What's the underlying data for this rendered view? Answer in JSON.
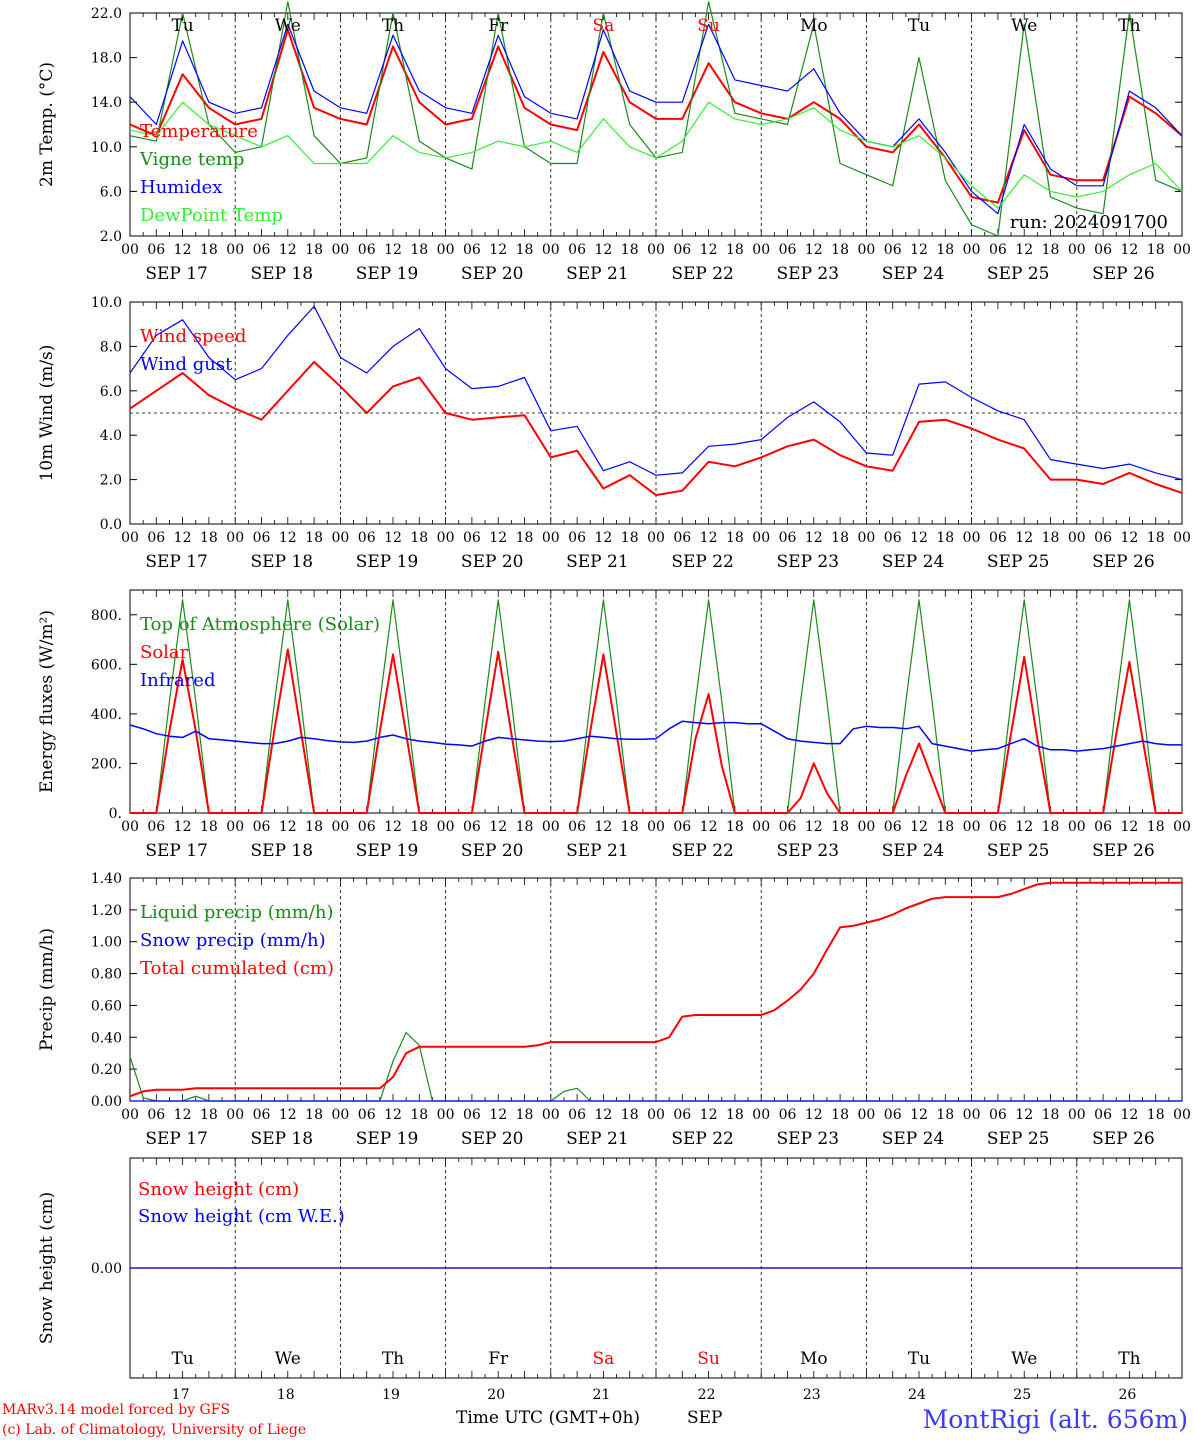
{
  "footer": {
    "credit_line1": "MARv3.14 model forced by GFS",
    "credit_line2": "(c) Lab. of Climatology, University of Liege",
    "xlabel": "Time UTC (GMT+0h)",
    "month": "SEP",
    "station": "MontRigi (alt. 656m)"
  },
  "chart_data": [
    {
      "type": "line",
      "id": "temp",
      "ylabel": "2m Temp. (°C)",
      "ylim": [
        2,
        22
      ],
      "yticks": [
        2,
        6,
        10,
        14,
        18,
        22
      ],
      "ytick_labels": [
        "2.0",
        "6.0",
        "10.0",
        "14.0",
        "18.0",
        "22.0"
      ],
      "annotation": "run: 2024091700",
      "show_dow": true,
      "x_hours": [
        0,
        6,
        12,
        18,
        24,
        30,
        36,
        42,
        48,
        54,
        60,
        66,
        72,
        78,
        84,
        90,
        96,
        102,
        108,
        114,
        120,
        126,
        132,
        138,
        144,
        150,
        156,
        162,
        168,
        174,
        180,
        186,
        192,
        198,
        204,
        210,
        216,
        222,
        228,
        234,
        240
      ],
      "series": [
        {
          "name": "Temperature",
          "color": "#ff0000",
          "width": 2,
          "values": [
            12.0,
            11.0,
            16.5,
            13.5,
            12.0,
            12.5,
            20.5,
            13.5,
            12.5,
            12.0,
            19.0,
            14.0,
            12.0,
            12.5,
            19.0,
            13.5,
            12.0,
            11.5,
            18.5,
            14.0,
            12.5,
            12.5,
            17.5,
            14.0,
            13.0,
            12.5,
            14.0,
            12.5,
            10.0,
            9.5,
            12.0,
            9.0,
            5.5,
            5.0,
            11.5,
            7.5,
            7.0,
            7.0,
            14.5,
            13.0,
            11.0
          ]
        },
        {
          "name": "Vigne temp",
          "color": "#1a8a1a",
          "width": 1.2,
          "values": [
            11.0,
            10.5,
            22.0,
            12.0,
            9.5,
            10.0,
            23.0,
            11.0,
            8.5,
            9.0,
            22.0,
            10.5,
            9.0,
            8.0,
            22.0,
            10.0,
            8.5,
            8.5,
            22.0,
            12.0,
            9.0,
            9.5,
            23.0,
            13.0,
            12.5,
            12.0,
            21.0,
            8.5,
            7.5,
            6.5,
            18.0,
            7.0,
            3.0,
            2.0,
            21.0,
            5.5,
            4.5,
            4.0,
            22.0,
            7.0,
            6.0
          ]
        },
        {
          "name": "Humidex",
          "color": "#0000ff",
          "width": 1.2,
          "values": [
            14.5,
            12.0,
            19.5,
            14.0,
            13.0,
            13.5,
            21.0,
            15.0,
            13.5,
            13.0,
            20.0,
            15.0,
            13.5,
            13.0,
            20.0,
            14.5,
            13.0,
            12.5,
            20.5,
            15.0,
            14.0,
            14.0,
            21.0,
            16.0,
            15.5,
            15.0,
            17.0,
            13.0,
            10.5,
            10.0,
            12.5,
            9.5,
            6.0,
            4.0,
            12.0,
            8.0,
            6.5,
            6.5,
            15.0,
            13.5,
            11.0
          ]
        },
        {
          "name": "DewPoint Temp",
          "color": "#33ee33",
          "width": 1.2,
          "values": [
            11.5,
            11.0,
            14.0,
            12.0,
            11.0,
            10.0,
            11.0,
            8.5,
            8.5,
            8.5,
            11.0,
            9.5,
            9.0,
            9.5,
            10.5,
            10.0,
            10.5,
            9.5,
            12.5,
            10.0,
            9.0,
            10.5,
            14.0,
            12.5,
            12.0,
            12.5,
            13.5,
            11.5,
            10.5,
            10.0,
            11.0,
            9.0,
            6.5,
            4.5,
            7.5,
            6.0,
            5.5,
            6.0,
            7.5,
            8.5,
            6.0
          ]
        }
      ]
    },
    {
      "type": "line",
      "id": "wind",
      "ylabel": "10m Wind (m/s)",
      "ylim": [
        0,
        10
      ],
      "yticks": [
        0,
        2,
        4,
        6,
        8,
        10
      ],
      "ytick_labels": [
        "0.0",
        "2.0",
        "4.0",
        "6.0",
        "8.0",
        "10.0"
      ],
      "reference_line": 5,
      "x_hours": [
        0,
        6,
        12,
        18,
        24,
        30,
        36,
        42,
        48,
        54,
        60,
        66,
        72,
        78,
        84,
        90,
        96,
        102,
        108,
        114,
        120,
        126,
        132,
        138,
        144,
        150,
        156,
        162,
        168,
        174,
        180,
        186,
        192,
        198,
        204,
        210,
        216,
        222,
        228,
        234,
        240
      ],
      "series": [
        {
          "name": "Wind speed",
          "color": "#ff0000",
          "width": 2,
          "values": [
            5.2,
            6.0,
            6.8,
            5.8,
            5.2,
            4.7,
            6.0,
            7.3,
            6.2,
            5.0,
            6.2,
            6.6,
            5.0,
            4.7,
            4.8,
            4.9,
            3.0,
            3.3,
            1.6,
            2.2,
            1.3,
            1.5,
            2.8,
            2.6,
            3.0,
            3.5,
            3.8,
            3.1,
            2.6,
            2.4,
            4.6,
            4.7,
            4.3,
            3.8,
            3.4,
            2.0,
            2.0,
            1.8,
            2.3,
            1.8,
            1.4
          ]
        },
        {
          "name": "Wind gust",
          "color": "#0000ff",
          "width": 1.2,
          "values": [
            6.8,
            8.5,
            9.2,
            7.5,
            6.5,
            7.0,
            8.5,
            9.8,
            7.5,
            6.8,
            8.0,
            8.8,
            7.0,
            6.1,
            6.2,
            6.6,
            4.2,
            4.4,
            2.4,
            2.8,
            2.2,
            2.3,
            3.5,
            3.6,
            3.8,
            4.8,
            5.5,
            4.6,
            3.2,
            3.1,
            6.3,
            6.4,
            5.7,
            5.1,
            4.7,
            2.9,
            2.7,
            2.5,
            2.7,
            2.3,
            2.0
          ]
        }
      ]
    },
    {
      "type": "line",
      "id": "energy",
      "ylabel": "Energy fluxes (W/m²)",
      "ylim": [
        0,
        900
      ],
      "yticks": [
        0,
        200,
        400,
        600,
        800
      ],
      "ytick_labels": [
        "0.",
        "200.",
        "400.",
        "600.",
        "800."
      ],
      "x_hours": [
        0,
        3,
        6,
        9,
        12,
        15,
        18,
        21,
        24,
        27,
        30,
        33,
        36,
        39,
        42,
        45,
        48,
        51,
        54,
        57,
        60,
        63,
        66,
        69,
        72,
        75,
        78,
        81,
        84,
        87,
        90,
        93,
        96,
        99,
        102,
        105,
        108,
        111,
        114,
        117,
        120,
        123,
        126,
        129,
        132,
        135,
        138,
        141,
        144,
        147,
        150,
        153,
        156,
        159,
        162,
        165,
        168,
        171,
        174,
        177,
        180,
        183,
        186,
        189,
        192,
        195,
        198,
        201,
        204,
        207,
        210,
        213,
        216,
        219,
        222,
        225,
        228,
        231,
        234,
        237,
        240
      ],
      "series": [
        {
          "name": "Top of Atmosphere (Solar)",
          "color": "#1a8a1a",
          "width": 1.2,
          "values": [
            0,
            0,
            0,
            450,
            860,
            450,
            0,
            0,
            0,
            0,
            0,
            450,
            860,
            450,
            0,
            0,
            0,
            0,
            0,
            450,
            860,
            450,
            0,
            0,
            0,
            0,
            0,
            450,
            860,
            450,
            0,
            0,
            0,
            0,
            0,
            450,
            860,
            450,
            0,
            0,
            0,
            0,
            0,
            450,
            860,
            450,
            0,
            0,
            0,
            0,
            0,
            450,
            860,
            450,
            0,
            0,
            0,
            0,
            0,
            450,
            860,
            450,
            0,
            0,
            0,
            0,
            0,
            450,
            860,
            450,
            0,
            0,
            0,
            0,
            0,
            450,
            860,
            450,
            0,
            0,
            0
          ]
        },
        {
          "name": "Solar",
          "color": "#ff0000",
          "width": 2,
          "values": [
            0,
            0,
            0,
            330,
            620,
            330,
            0,
            0,
            0,
            0,
            0,
            340,
            660,
            330,
            0,
            0,
            0,
            0,
            0,
            330,
            640,
            320,
            0,
            0,
            0,
            0,
            0,
            330,
            650,
            320,
            0,
            0,
            0,
            0,
            0,
            330,
            640,
            320,
            0,
            0,
            0,
            0,
            0,
            300,
            480,
            190,
            0,
            0,
            0,
            0,
            0,
            60,
            200,
            80,
            0,
            0,
            0,
            0,
            0,
            150,
            280,
            140,
            0,
            0,
            0,
            0,
            0,
            320,
            630,
            300,
            0,
            0,
            0,
            0,
            0,
            320,
            610,
            300,
            0,
            0,
            0
          ]
        },
        {
          "name": "Infrared",
          "color": "#0000ff",
          "width": 1.5,
          "values": [
            355,
            340,
            320,
            310,
            305,
            330,
            300,
            295,
            290,
            285,
            280,
            280,
            290,
            305,
            300,
            292,
            287,
            285,
            290,
            305,
            315,
            300,
            290,
            285,
            278,
            275,
            270,
            290,
            305,
            300,
            295,
            290,
            288,
            290,
            300,
            310,
            305,
            300,
            298,
            298,
            300,
            340,
            370,
            365,
            360,
            365,
            365,
            360,
            360,
            330,
            300,
            290,
            285,
            280,
            280,
            340,
            350,
            345,
            345,
            340,
            350,
            280,
            270,
            260,
            250,
            255,
            260,
            280,
            300,
            270,
            255,
            255,
            250,
            255,
            260,
            270,
            280,
            290,
            280,
            275,
            275
          ]
        }
      ]
    },
    {
      "type": "line",
      "id": "precip",
      "ylabel": "Precip (mm/h)",
      "ylim": [
        0,
        1.4
      ],
      "yticks": [
        0,
        0.2,
        0.4,
        0.6,
        0.8,
        1.0,
        1.2,
        1.4
      ],
      "ytick_labels": [
        "0.00",
        "0.20",
        "0.40",
        "0.60",
        "0.80",
        "1.00",
        "1.20",
        "1.40"
      ],
      "x_hours": [
        0,
        3,
        6,
        9,
        12,
        15,
        18,
        21,
        24,
        27,
        30,
        33,
        36,
        39,
        42,
        45,
        48,
        51,
        54,
        57,
        60,
        63,
        66,
        69,
        72,
        75,
        78,
        81,
        84,
        87,
        90,
        93,
        96,
        99,
        102,
        105,
        108,
        111,
        114,
        117,
        120,
        123,
        126,
        129,
        132,
        135,
        138,
        141,
        144,
        147,
        150,
        153,
        156,
        159,
        162,
        165,
        168,
        171,
        174,
        177,
        180,
        183,
        186,
        189,
        192,
        195,
        198,
        201,
        204,
        207,
        210,
        213,
        216,
        219,
        222,
        225,
        228,
        231,
        234,
        237,
        240
      ],
      "series": [
        {
          "name": "Liquid precip (mm/h)",
          "color": "#1a8a1a",
          "width": 1.2,
          "values": [
            0.28,
            0.02,
            0.0,
            0.0,
            0.0,
            0.03,
            0.0,
            0.0,
            0.0,
            0.0,
            0.0,
            0.0,
            0.0,
            0.0,
            0.0,
            0.0,
            0.0,
            0.0,
            0.0,
            0.0,
            0.25,
            0.43,
            0.35,
            0.0,
            0.0,
            0.0,
            0.0,
            0.0,
            0.0,
            0.0,
            0.0,
            0.0,
            0.0,
            0.06,
            0.08,
            0.0,
            0.0,
            0.0,
            0.0,
            0.0,
            0.0,
            0.0,
            0.0,
            0.0,
            0.0,
            0.0,
            0.0,
            0.0,
            0.0,
            0.0,
            0.0,
            0.0,
            0.0,
            0.0,
            0.0,
            0.0,
            0.0,
            0.0,
            0.0,
            0.0,
            0.0,
            0.0,
            0.0,
            0.0,
            0.0,
            0.0,
            0.0,
            0.0,
            0.0,
            0.0,
            0.0,
            0.0,
            0.0,
            0.0,
            0.0,
            0.0,
            0.0,
            0.0,
            0.0,
            0.0,
            0.0
          ]
        },
        {
          "name": "Snow precip (mm/h)",
          "color": "#0000ff",
          "width": 1.2,
          "values": [
            0,
            0
          ]
        },
        {
          "name": "Total cumulated (cm)",
          "color": "#ff0000",
          "width": 2,
          "values": [
            0.03,
            0.06,
            0.07,
            0.07,
            0.07,
            0.08,
            0.08,
            0.08,
            0.08,
            0.08,
            0.08,
            0.08,
            0.08,
            0.08,
            0.08,
            0.08,
            0.08,
            0.08,
            0.08,
            0.08,
            0.15,
            0.3,
            0.34,
            0.34,
            0.34,
            0.34,
            0.34,
            0.34,
            0.34,
            0.34,
            0.34,
            0.35,
            0.37,
            0.37,
            0.37,
            0.37,
            0.37,
            0.37,
            0.37,
            0.37,
            0.37,
            0.4,
            0.53,
            0.54,
            0.54,
            0.54,
            0.54,
            0.54,
            0.54,
            0.57,
            0.63,
            0.7,
            0.8,
            0.95,
            1.09,
            1.1,
            1.12,
            1.14,
            1.17,
            1.21,
            1.24,
            1.27,
            1.28,
            1.28,
            1.28,
            1.28,
            1.28,
            1.3,
            1.33,
            1.36,
            1.37,
            1.37,
            1.37,
            1.37,
            1.37,
            1.37,
            1.37,
            1.37,
            1.37,
            1.37,
            1.37
          ]
        }
      ]
    },
    {
      "type": "line",
      "id": "snow",
      "ylabel": "Snow height (cm)",
      "ylim": [
        -1,
        1
      ],
      "yticks": [
        0
      ],
      "ytick_labels": [
        "0.00"
      ],
      "x_hours": [
        0,
        240
      ],
      "series": [
        {
          "name": "Snow height (cm)",
          "color": "#ff0000",
          "width": 1.2,
          "values": [
            0,
            0
          ]
        },
        {
          "name": "Snow height (cm W.E.)",
          "color": "#0000ff",
          "width": 1.2,
          "values": [
            0,
            0
          ]
        }
      ]
    }
  ],
  "x_axis": {
    "hour_labels": [
      "00",
      "06",
      "12",
      "18"
    ],
    "end_label": "00",
    "dates": [
      "SEP 17",
      "SEP 18",
      "SEP 19",
      "SEP 20",
      "SEP 21",
      "SEP 22",
      "SEP 23",
      "SEP 24",
      "SEP 25",
      "SEP 26"
    ],
    "days": [
      "17",
      "18",
      "19",
      "20",
      "21",
      "22",
      "23",
      "24",
      "25",
      "26"
    ],
    "dow": [
      "Tu",
      "We",
      "Th",
      "Fr",
      "Sa",
      "Su",
      "Mo",
      "Tu",
      "We",
      "Th"
    ],
    "dow_colors": [
      "#000000",
      "#000000",
      "#000000",
      "#000000",
      "#ff0000",
      "#ff0000",
      "#000000",
      "#000000",
      "#000000",
      "#000000"
    ]
  }
}
